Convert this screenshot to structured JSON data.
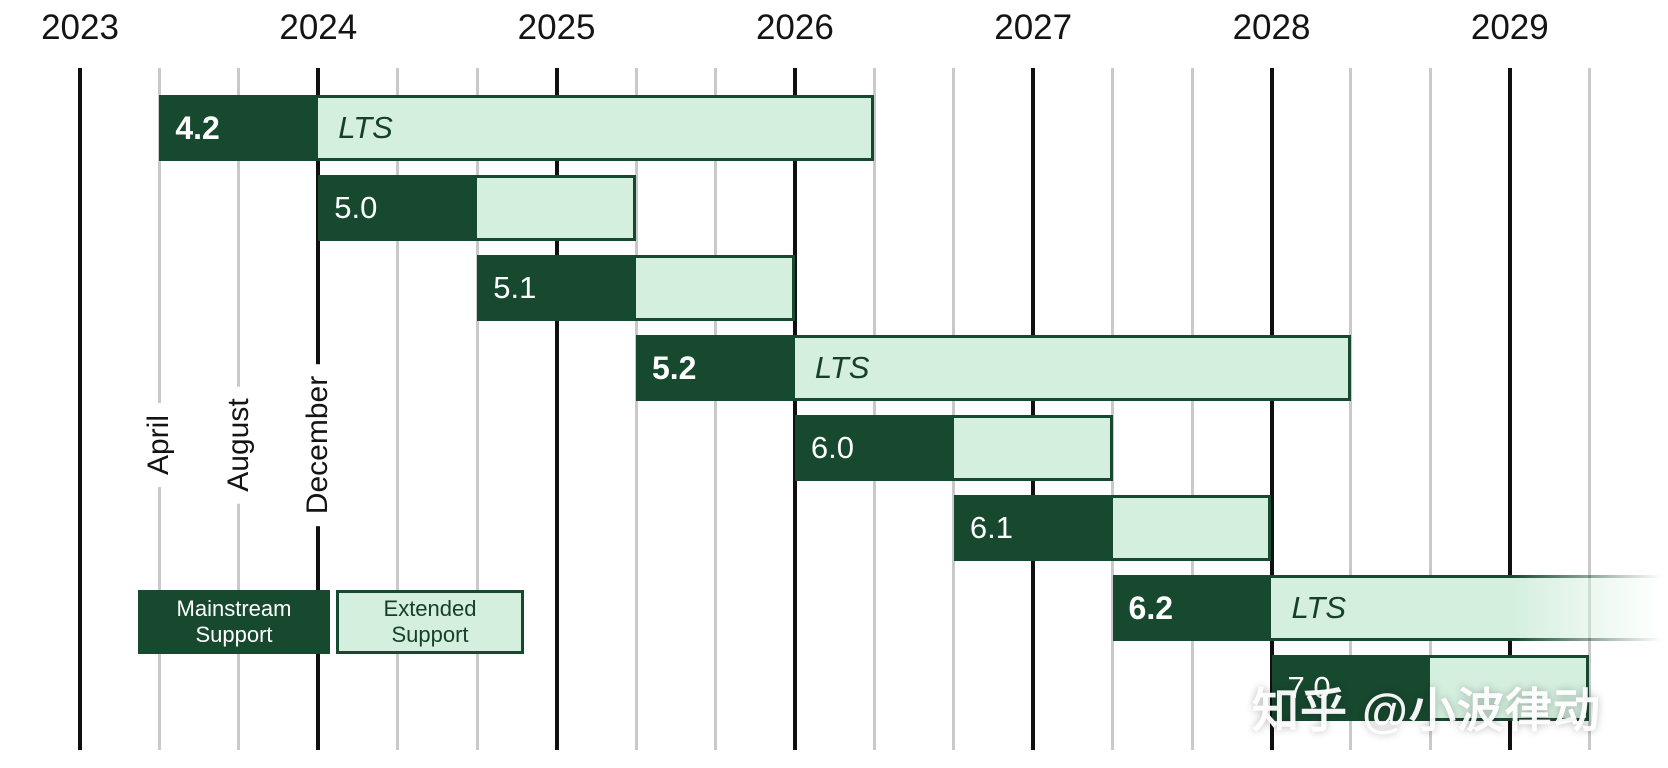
{
  "watermark": {
    "text": "知乎 @小波律动"
  },
  "legend": {
    "mainstream_label": "Mainstream Support",
    "extended_label": "Extended Support"
  },
  "chart_data": {
    "type": "gantt",
    "lts_label": "LTS",
    "years": [
      "2023",
      "2024",
      "2025",
      "2026",
      "2027",
      "2028",
      "2029"
    ],
    "month_tick_labels": [
      "April",
      "August",
      "December"
    ],
    "axis": {
      "year_start": 2023,
      "year_end": 2029,
      "ticks_per_year": 3
    },
    "colors": {
      "mainstream": "#17492f",
      "extended": "#d5efdf",
      "lts_text": "#16402a",
      "grid_gray": "#c9c9c9",
      "grid_black": "#101010"
    },
    "releases": [
      {
        "version": "4.2",
        "lts": true,
        "start": "April 2023",
        "mainstream_end": "December 2023",
        "extended_end": "April 2026",
        "t0": 2023.333,
        "t1": 2024.0,
        "t2": 2026.333,
        "clip_fade": false
      },
      {
        "version": "5.0",
        "lts": false,
        "start": "December 2023",
        "mainstream_end": "August 2024",
        "extended_end": "April 2025",
        "t0": 2024.0,
        "t1": 2024.667,
        "t2": 2025.333,
        "clip_fade": false
      },
      {
        "version": "5.1",
        "lts": false,
        "start": "August 2024",
        "mainstream_end": "April 2025",
        "extended_end": "December 2025",
        "t0": 2024.667,
        "t1": 2025.333,
        "t2": 2026.0,
        "clip_fade": false
      },
      {
        "version": "5.2",
        "lts": true,
        "start": "April 2025",
        "mainstream_end": "December 2025",
        "extended_end": "April 2028",
        "t0": 2025.333,
        "t1": 2026.0,
        "t2": 2028.333,
        "clip_fade": false
      },
      {
        "version": "6.0",
        "lts": false,
        "start": "December 2025",
        "mainstream_end": "August 2026",
        "extended_end": "April 2027",
        "t0": 2026.0,
        "t1": 2026.667,
        "t2": 2027.333,
        "clip_fade": false
      },
      {
        "version": "6.1",
        "lts": false,
        "start": "August 2026",
        "mainstream_end": "April 2027",
        "extended_end": "December 2027",
        "t0": 2026.667,
        "t1": 2027.333,
        "t2": 2028.0,
        "clip_fade": false
      },
      {
        "version": "6.2",
        "lts": true,
        "start": "April 2027",
        "mainstream_end": "December 2027",
        "extended_end": "off-chart",
        "t0": 2027.333,
        "t1": 2028.0,
        "t2": 2030.4,
        "clip_fade": true
      },
      {
        "version": "7.0",
        "lts": false,
        "start": "December 2027",
        "mainstream_end": "August 2028",
        "extended_end": "April 2029",
        "t0": 2028.0,
        "t1": 2028.667,
        "t2": 2029.333,
        "clip_fade": false
      }
    ]
  }
}
